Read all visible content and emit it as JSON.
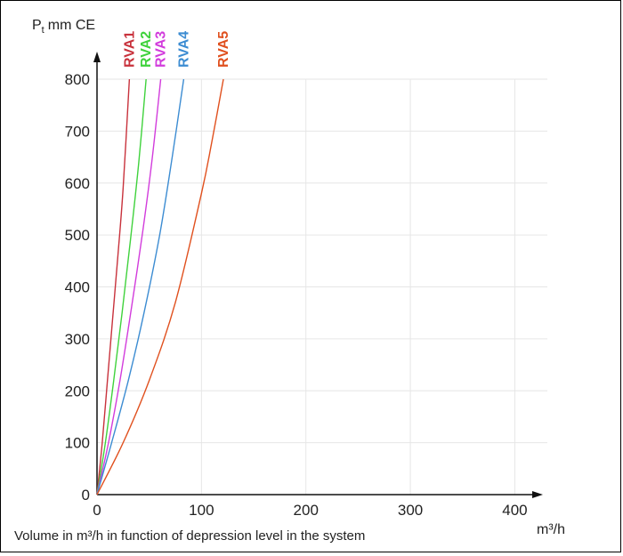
{
  "chart_data": {
    "type": "line",
    "ylabel": "P",
    "ylabel_subscript": "t",
    "ylabel_unit": "mm CE",
    "xlabel": "m³/h",
    "caption": "Volume in m³/h in function of depression level in the system",
    "xlim": [
      0,
      420
    ],
    "ylim": [
      0,
      800
    ],
    "xticks": [
      0,
      100,
      200,
      300,
      400
    ],
    "yticks": [
      0,
      100,
      200,
      300,
      400,
      500,
      600,
      700,
      800
    ],
    "grid": true,
    "series": [
      {
        "name": "RVA1",
        "color": "#c8323c",
        "points": [
          [
            0,
            0
          ],
          [
            5,
            100
          ],
          [
            10,
            220
          ],
          [
            15,
            340
          ],
          [
            20,
            460
          ],
          [
            25,
            590
          ],
          [
            31,
            800
          ]
        ]
      },
      {
        "name": "RVA2",
        "color": "#3fd23c",
        "points": [
          [
            0,
            0
          ],
          [
            8,
            100
          ],
          [
            16,
            220
          ],
          [
            24,
            350
          ],
          [
            32,
            490
          ],
          [
            40,
            640
          ],
          [
            47,
            800
          ]
        ]
      },
      {
        "name": "RVA3",
        "color": "#d23cdc",
        "points": [
          [
            0,
            0
          ],
          [
            11,
            100
          ],
          [
            22,
            220
          ],
          [
            33,
            360
          ],
          [
            44,
            510
          ],
          [
            53,
            650
          ],
          [
            61,
            800
          ]
        ]
      },
      {
        "name": "RVA4",
        "color": "#3c8cd2",
        "points": [
          [
            0,
            0
          ],
          [
            14,
            100
          ],
          [
            30,
            220
          ],
          [
            45,
            350
          ],
          [
            60,
            500
          ],
          [
            72,
            650
          ],
          [
            83,
            800
          ]
        ]
      },
      {
        "name": "RVA5",
        "color": "#e0501e",
        "points": [
          [
            0,
            0
          ],
          [
            25,
            100
          ],
          [
            50,
            220
          ],
          [
            75,
            370
          ],
          [
            100,
            580
          ],
          [
            110,
            680
          ],
          [
            121,
            800
          ]
        ]
      }
    ]
  }
}
